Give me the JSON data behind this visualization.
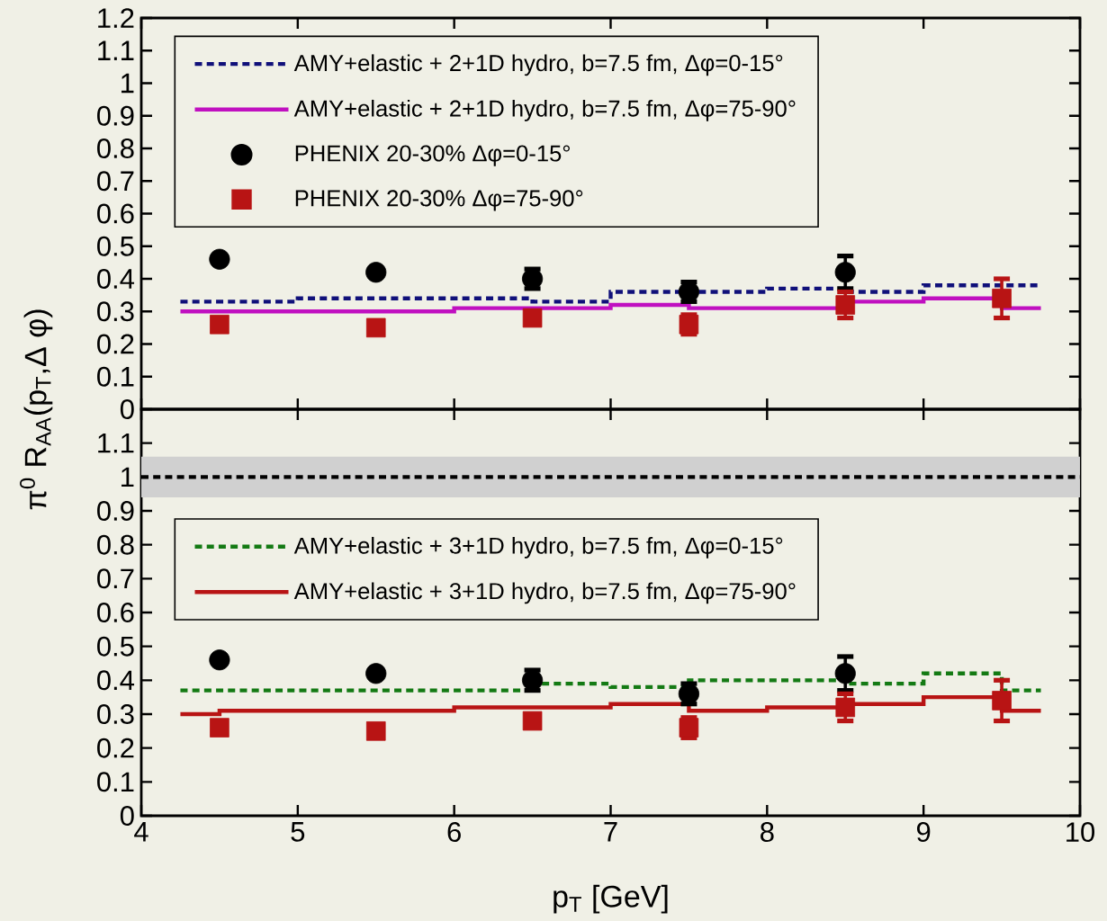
{
  "chart_data": [
    {
      "type": "scatter",
      "ylabel": "π$^{0}$ R$_{AA}$(p$_{T}$,Δ φ)",
      "xlim": [
        4,
        10
      ],
      "xticks": [
        4,
        5,
        6,
        7,
        8,
        9,
        10
      ],
      "ylim": [
        0,
        1.2
      ],
      "yticks": [
        0,
        0.1,
        0.2,
        0.3,
        0.4,
        0.5,
        0.6,
        0.7,
        0.8,
        0.9,
        1,
        1.1,
        1.2
      ],
      "tick_labels": "y",
      "legend": "top left",
      "series": [
        {
          "name": "AMY+elastic + 2+1D hydro, b=7.5 fm, Δφ=0-15°",
          "type": "step",
          "color": "#10107a",
          "line_style": "dashed",
          "x": [
            4.25,
            4.75,
            5.25,
            5.75,
            6.25,
            6.75,
            7.25,
            7.75,
            8.25,
            8.75,
            9.25,
            9.75
          ],
          "values": [
            0.33,
            0.33,
            0.34,
            0.34,
            0.34,
            0.33,
            0.36,
            0.36,
            0.37,
            0.36,
            0.38,
            0.38
          ]
        },
        {
          "name": "AMY+elastic + 2+1D hydro, b=7.5 fm, Δφ=75-90°",
          "type": "step",
          "color": "#c010c0",
          "line_style": "solid",
          "x": [
            4.25,
            4.75,
            5.25,
            5.75,
            6.25,
            6.75,
            7.25,
            7.75,
            8.25,
            8.75,
            9.25,
            9.75
          ],
          "values": [
            0.3,
            0.3,
            0.3,
            0.3,
            0.31,
            0.31,
            0.32,
            0.31,
            0.31,
            0.33,
            0.34,
            0.31
          ]
        },
        {
          "name": "PHENIX 20-30% Δφ=0-15°",
          "color": "#000000",
          "marker": "circle",
          "x": [
            4.5,
            5.5,
            6.5,
            7.5,
            8.5
          ],
          "values": [
            0.46,
            0.42,
            0.4,
            0.36,
            0.42
          ],
          "errors": [
            null,
            null,
            0.03,
            0.03,
            0.05
          ]
        },
        {
          "name": "PHENIX 20-30% Δφ=75-90°",
          "color": "#b81414",
          "marker": "square",
          "x": [
            4.5,
            5.5,
            6.5,
            7.5,
            8.5,
            9.5
          ],
          "values": [
            0.26,
            0.25,
            0.28,
            0.26,
            0.32,
            0.34
          ],
          "errors": [
            null,
            null,
            null,
            0.03,
            0.04,
            0.06
          ]
        }
      ]
    },
    {
      "type": "scatter",
      "xlabel": "p$_{T}$ [GeV]",
      "xlim": [
        4,
        10
      ],
      "xticks": [
        4,
        5,
        6,
        7,
        8,
        9,
        10
      ],
      "ylim": [
        0,
        1.2
      ],
      "yticks": [
        0,
        0.1,
        0.2,
        0.3,
        0.4,
        0.5,
        0.6,
        0.7,
        0.8,
        0.9,
        1,
        1.1
      ],
      "legend": "left",
      "ref_lines": [
        {
          "axis": "y",
          "value": 1,
          "color": "#000000",
          "line_style": "dashed"
        }
      ],
      "bands": [
        {
          "axis": "y",
          "from": 0.94,
          "to": 1.06,
          "color": "#d0d0d0"
        }
      ],
      "series": [
        {
          "name": "AMY+elastic + 3+1D hydro, b=7.5 fm, Δφ=0-15°",
          "type": "step",
          "color": "#147a14",
          "line_style": "dashed",
          "x": [
            4.25,
            4.75,
            5.25,
            5.75,
            6.25,
            6.75,
            7.25,
            7.75,
            8.25,
            8.75,
            9.25,
            9.75
          ],
          "values": [
            0.37,
            0.37,
            0.37,
            0.37,
            0.37,
            0.39,
            0.38,
            0.4,
            0.4,
            0.39,
            0.42,
            0.37
          ]
        },
        {
          "name": "AMY+elastic + 3+1D hydro, b=7.5 fm, Δφ=75-90°",
          "type": "step",
          "color": "#b81414",
          "line_style": "solid",
          "x": [
            4.25,
            4.75,
            5.25,
            5.75,
            6.25,
            6.75,
            7.25,
            7.75,
            8.25,
            8.75,
            9.25,
            9.75
          ],
          "values": [
            0.3,
            0.31,
            0.31,
            0.31,
            0.32,
            0.32,
            0.33,
            0.31,
            0.32,
            0.33,
            0.35,
            0.31
          ]
        },
        {
          "color": "#000000",
          "marker": "circle",
          "x": [
            4.5,
            5.5,
            6.5,
            7.5,
            8.5
          ],
          "values": [
            0.46,
            0.42,
            0.4,
            0.36,
            0.42
          ],
          "errors": [
            null,
            null,
            0.03,
            0.03,
            0.05
          ]
        },
        {
          "color": "#b81414",
          "marker": "square",
          "x": [
            4.5,
            5.5,
            6.5,
            7.5,
            8.5,
            9.5
          ],
          "values": [
            0.26,
            0.25,
            0.28,
            0.26,
            0.32,
            0.34
          ],
          "errors": [
            null,
            null,
            null,
            0.03,
            0.04,
            0.06
          ]
        }
      ]
    }
  ]
}
